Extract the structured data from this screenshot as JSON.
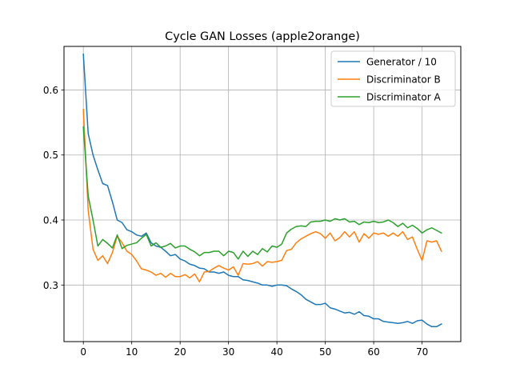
{
  "chart_data": {
    "type": "line",
    "title": "Cycle GAN Losses (apple2orange)",
    "xlabel": "",
    "ylabel": "",
    "xlim": [
      -4,
      78
    ],
    "ylim": [
      0.213,
      0.667
    ],
    "x_ticks": [
      0,
      10,
      20,
      30,
      40,
      50,
      60,
      70
    ],
    "y_ticks": [
      0.3,
      0.4,
      0.5,
      0.6
    ],
    "grid": true,
    "legend_position": "top-right",
    "series": [
      {
        "name": "Generator / 10",
        "color": "#1f77b4",
        "values": [
          0.655,
          0.533,
          0.5,
          0.477,
          0.456,
          0.453,
          0.428,
          0.4,
          0.396,
          0.385,
          0.382,
          0.377,
          0.375,
          0.38,
          0.365,
          0.36,
          0.358,
          0.352,
          0.345,
          0.347,
          0.34,
          0.337,
          0.332,
          0.33,
          0.326,
          0.325,
          0.32,
          0.32,
          0.318,
          0.32,
          0.315,
          0.313,
          0.313,
          0.308,
          0.307,
          0.305,
          0.303,
          0.3,
          0.3,
          0.298,
          0.3,
          0.3,
          0.299,
          0.294,
          0.29,
          0.285,
          0.278,
          0.274,
          0.27,
          0.27,
          0.272,
          0.265,
          0.263,
          0.26,
          0.257,
          0.258,
          0.255,
          0.259,
          0.253,
          0.252,
          0.248,
          0.248,
          0.244,
          0.243,
          0.242,
          0.241,
          0.242,
          0.244,
          0.241,
          0.245,
          0.246,
          0.24,
          0.236,
          0.236,
          0.24
        ]
      },
      {
        "name": "Discriminator B",
        "color": "#ff7f0e",
        "values": [
          0.57,
          0.415,
          0.355,
          0.338,
          0.345,
          0.333,
          0.35,
          0.375,
          0.365,
          0.352,
          0.347,
          0.337,
          0.325,
          0.323,
          0.32,
          0.315,
          0.318,
          0.312,
          0.318,
          0.313,
          0.313,
          0.316,
          0.311,
          0.317,
          0.305,
          0.32,
          0.321,
          0.326,
          0.33,
          0.326,
          0.323,
          0.328,
          0.315,
          0.333,
          0.332,
          0.333,
          0.336,
          0.329,
          0.336,
          0.335,
          0.336,
          0.338,
          0.353,
          0.355,
          0.365,
          0.371,
          0.375,
          0.379,
          0.382,
          0.379,
          0.372,
          0.38,
          0.368,
          0.373,
          0.382,
          0.374,
          0.382,
          0.366,
          0.379,
          0.372,
          0.38,
          0.378,
          0.38,
          0.375,
          0.38,
          0.375,
          0.382,
          0.37,
          0.374,
          0.355,
          0.338,
          0.368,
          0.366,
          0.368,
          0.352
        ]
      },
      {
        "name": "Discriminator A",
        "color": "#2ca02c",
        "values": [
          0.543,
          0.437,
          0.4,
          0.36,
          0.37,
          0.364,
          0.357,
          0.377,
          0.356,
          0.361,
          0.363,
          0.365,
          0.372,
          0.378,
          0.36,
          0.365,
          0.358,
          0.36,
          0.364,
          0.357,
          0.36,
          0.36,
          0.355,
          0.351,
          0.345,
          0.35,
          0.35,
          0.352,
          0.352,
          0.345,
          0.352,
          0.35,
          0.34,
          0.352,
          0.344,
          0.352,
          0.347,
          0.356,
          0.351,
          0.36,
          0.358,
          0.363,
          0.38,
          0.386,
          0.39,
          0.391,
          0.39,
          0.397,
          0.398,
          0.398,
          0.4,
          0.398,
          0.402,
          0.4,
          0.402,
          0.397,
          0.398,
          0.393,
          0.397,
          0.396,
          0.398,
          0.396,
          0.397,
          0.4,
          0.396,
          0.39,
          0.395,
          0.388,
          0.392,
          0.387,
          0.38,
          0.385,
          0.388,
          0.384,
          0.38
        ]
      }
    ]
  }
}
